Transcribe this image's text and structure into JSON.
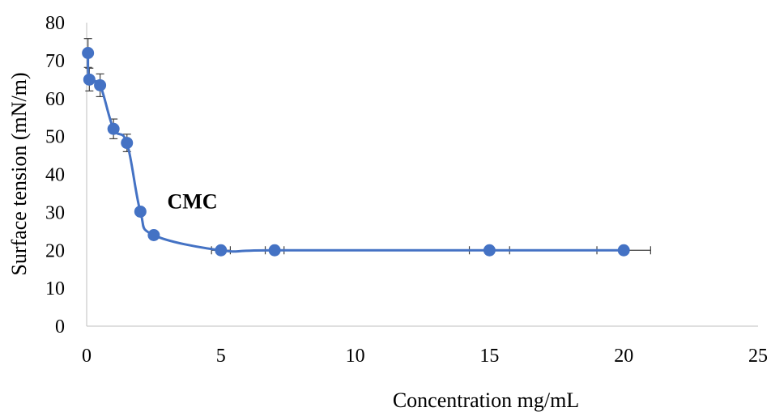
{
  "chart_data": {
    "type": "scatter",
    "title": "",
    "xlabel": "Concentration mg/mL",
    "ylabel": "Surface tension (mN/m)",
    "xlim": [
      0,
      25
    ],
    "ylim": [
      0,
      80
    ],
    "x_ticks": [
      0,
      5,
      10,
      15,
      20,
      25
    ],
    "y_ticks": [
      0,
      10,
      20,
      30,
      40,
      50,
      60,
      70,
      80
    ],
    "grid": false,
    "legend": "none",
    "series": [
      {
        "x": [
          0.05,
          0.1,
          0.5,
          1.0,
          1.5,
          2.0,
          2.5,
          5.0,
          7.0,
          15.0,
          20.0
        ],
        "y": [
          72,
          65,
          63.5,
          52,
          48.3,
          30.2,
          24,
          20,
          20,
          20,
          20
        ],
        "y_error": [
          3.8,
          3,
          3,
          2.6,
          2.3,
          0,
          0,
          0,
          0,
          0,
          0
        ],
        "x_error": [
          0,
          0,
          0,
          0,
          0,
          0,
          0,
          0.35,
          0.35,
          0.75,
          1.0
        ],
        "color": "#4472C4",
        "line": "smoothed"
      }
    ],
    "annotations": [
      {
        "text": "CMC",
        "x": 3.0,
        "y": 31
      }
    ]
  }
}
